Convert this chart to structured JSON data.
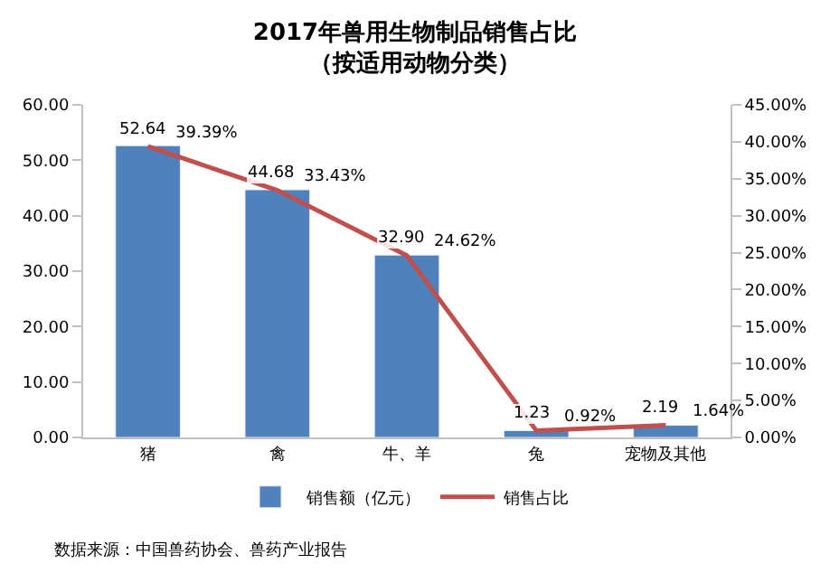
{
  "chart_data": {
    "type": "bar",
    "title": "2017年兽用生物制品销售占比",
    "subtitle": "（按适用动物分类）",
    "categories": [
      "猪",
      "禽",
      "牛、羊",
      "兔",
      "宠物及其他"
    ],
    "series": [
      {
        "name": "销售额（亿元）",
        "color": "#4f81bd",
        "values": [
          52.64,
          44.68,
          32.9,
          1.23,
          2.19
        ],
        "value_labels": [
          "52.64",
          "44.68",
          "32.90",
          "1.23",
          "2.19"
        ]
      },
      {
        "name": "销售占比",
        "type": "line",
        "axis": "y2",
        "color": "#c0504d",
        "values": [
          39.39,
          33.43,
          24.62,
          0.92,
          1.64
        ],
        "value_labels": [
          "39.39%",
          "33.43%",
          "24.62%",
          "0.92%",
          "1.64%"
        ]
      }
    ],
    "ylim": [
      0,
      60
    ],
    "yticks": [
      {
        "value": 0,
        "label": "0.00"
      },
      {
        "value": 10,
        "label": "10.00"
      },
      {
        "value": 20,
        "label": "20.00"
      },
      {
        "value": 30,
        "label": "30.00"
      },
      {
        "value": 40,
        "label": "40.00"
      },
      {
        "value": 50,
        "label": "50.00"
      },
      {
        "value": 60,
        "label": "60.00"
      }
    ],
    "y2lim": [
      0,
      45
    ],
    "y2ticks": [
      {
        "value": 0,
        "label": "0.00%"
      },
      {
        "value": 5,
        "label": "5.00%"
      },
      {
        "value": 10,
        "label": "10.00%"
      },
      {
        "value": 15,
        "label": "15.00%"
      },
      {
        "value": 20,
        "label": "20.00%"
      },
      {
        "value": 25,
        "label": "25.00%"
      },
      {
        "value": 30,
        "label": "30.00%"
      },
      {
        "value": 35,
        "label": "35.00%"
      },
      {
        "value": 40,
        "label": "40.00%"
      },
      {
        "value": 45,
        "label": "45.00%"
      }
    ],
    "legend": "bottom",
    "marker": "none",
    "line_style": "solid",
    "annotations": [
      "数据来源：中国兽药协会、兽药产业报告"
    ]
  }
}
